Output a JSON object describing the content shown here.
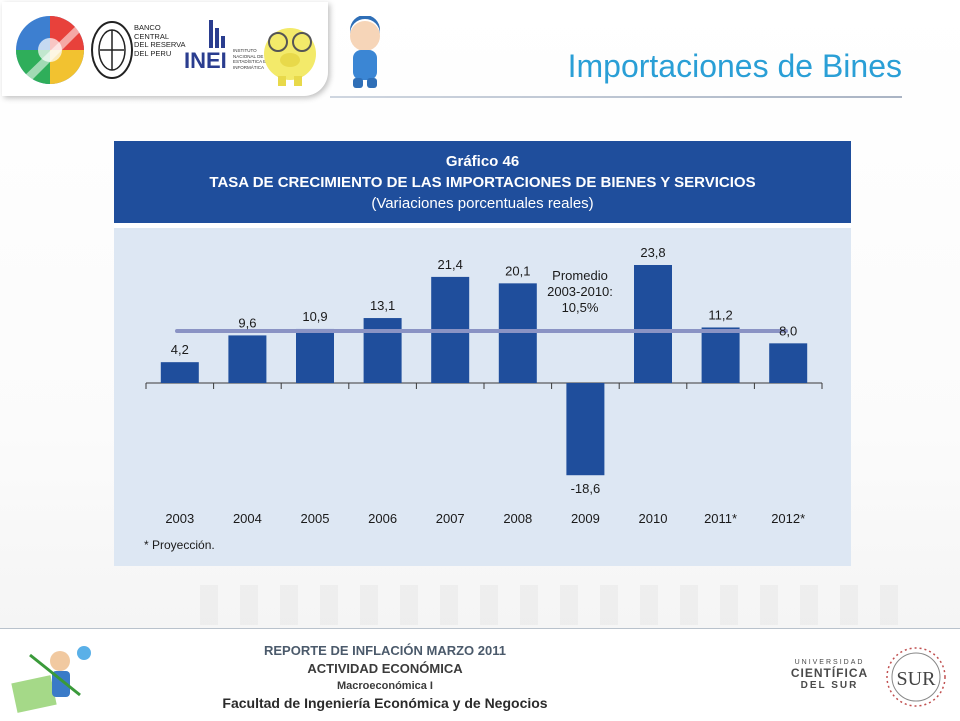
{
  "slide": {
    "title": "Importaciones de Bines",
    "logos": [
      {
        "name": "peru-logo"
      },
      {
        "name": "bcrp-logo",
        "lines": [
          "BANCO",
          "CENTRAL",
          "DEL RESERVA",
          "DEL PERU"
        ]
      },
      {
        "name": "inei-logo",
        "text": "INEI",
        "lines": [
          "INSTITUTO",
          "NACIONAL DE",
          "ESTADÍSTICA E",
          "INFORMÁTICA"
        ]
      },
      {
        "name": "piggy-bank-logo"
      },
      {
        "name": "pocoyo-logo"
      }
    ]
  },
  "figure": {
    "number": "Gráfico 46",
    "title": "TASA DE CRECIMIENTO DE LAS IMPORTACIONES DE BIENES Y SERVICIOS",
    "subtitle": "(Variaciones porcentuales reales)",
    "footnote": "* Proyección."
  },
  "chart_data": {
    "type": "bar",
    "categories": [
      "2003",
      "2004",
      "2005",
      "2006",
      "2007",
      "2008",
      "2009",
      "2010",
      "2011*",
      "2012*"
    ],
    "values": [
      4.2,
      9.6,
      10.9,
      13.1,
      21.4,
      20.1,
      -18.6,
      23.8,
      11.2,
      8.0
    ],
    "value_labels": [
      "4,2",
      "9,6",
      "10,9",
      "13,1",
      "21,4",
      "20,1",
      "-18,6",
      "23,8",
      "11,2",
      "8,0"
    ],
    "reference_line": {
      "value": 10.5,
      "label_lines": [
        "Promedio",
        "2003-2010:",
        "10,5%"
      ]
    },
    "ylim": [
      -20,
      26
    ],
    "grid": false,
    "colors": {
      "bar": "#1f4e9c",
      "reference_line": "#8a93c4"
    }
  },
  "footer": {
    "lines": [
      "REPORTE DE INFLACIÓN MARZO 2011",
      "ACTIVIDAD ECONÓMICA",
      "Macroeconómica I",
      "Facultad de Ingeniería Económica y de Negocios"
    ],
    "university": [
      "UNIVERSIDAD",
      "CIENTÍFICA",
      "DEL SUR"
    ],
    "seal_text": "SUR"
  }
}
